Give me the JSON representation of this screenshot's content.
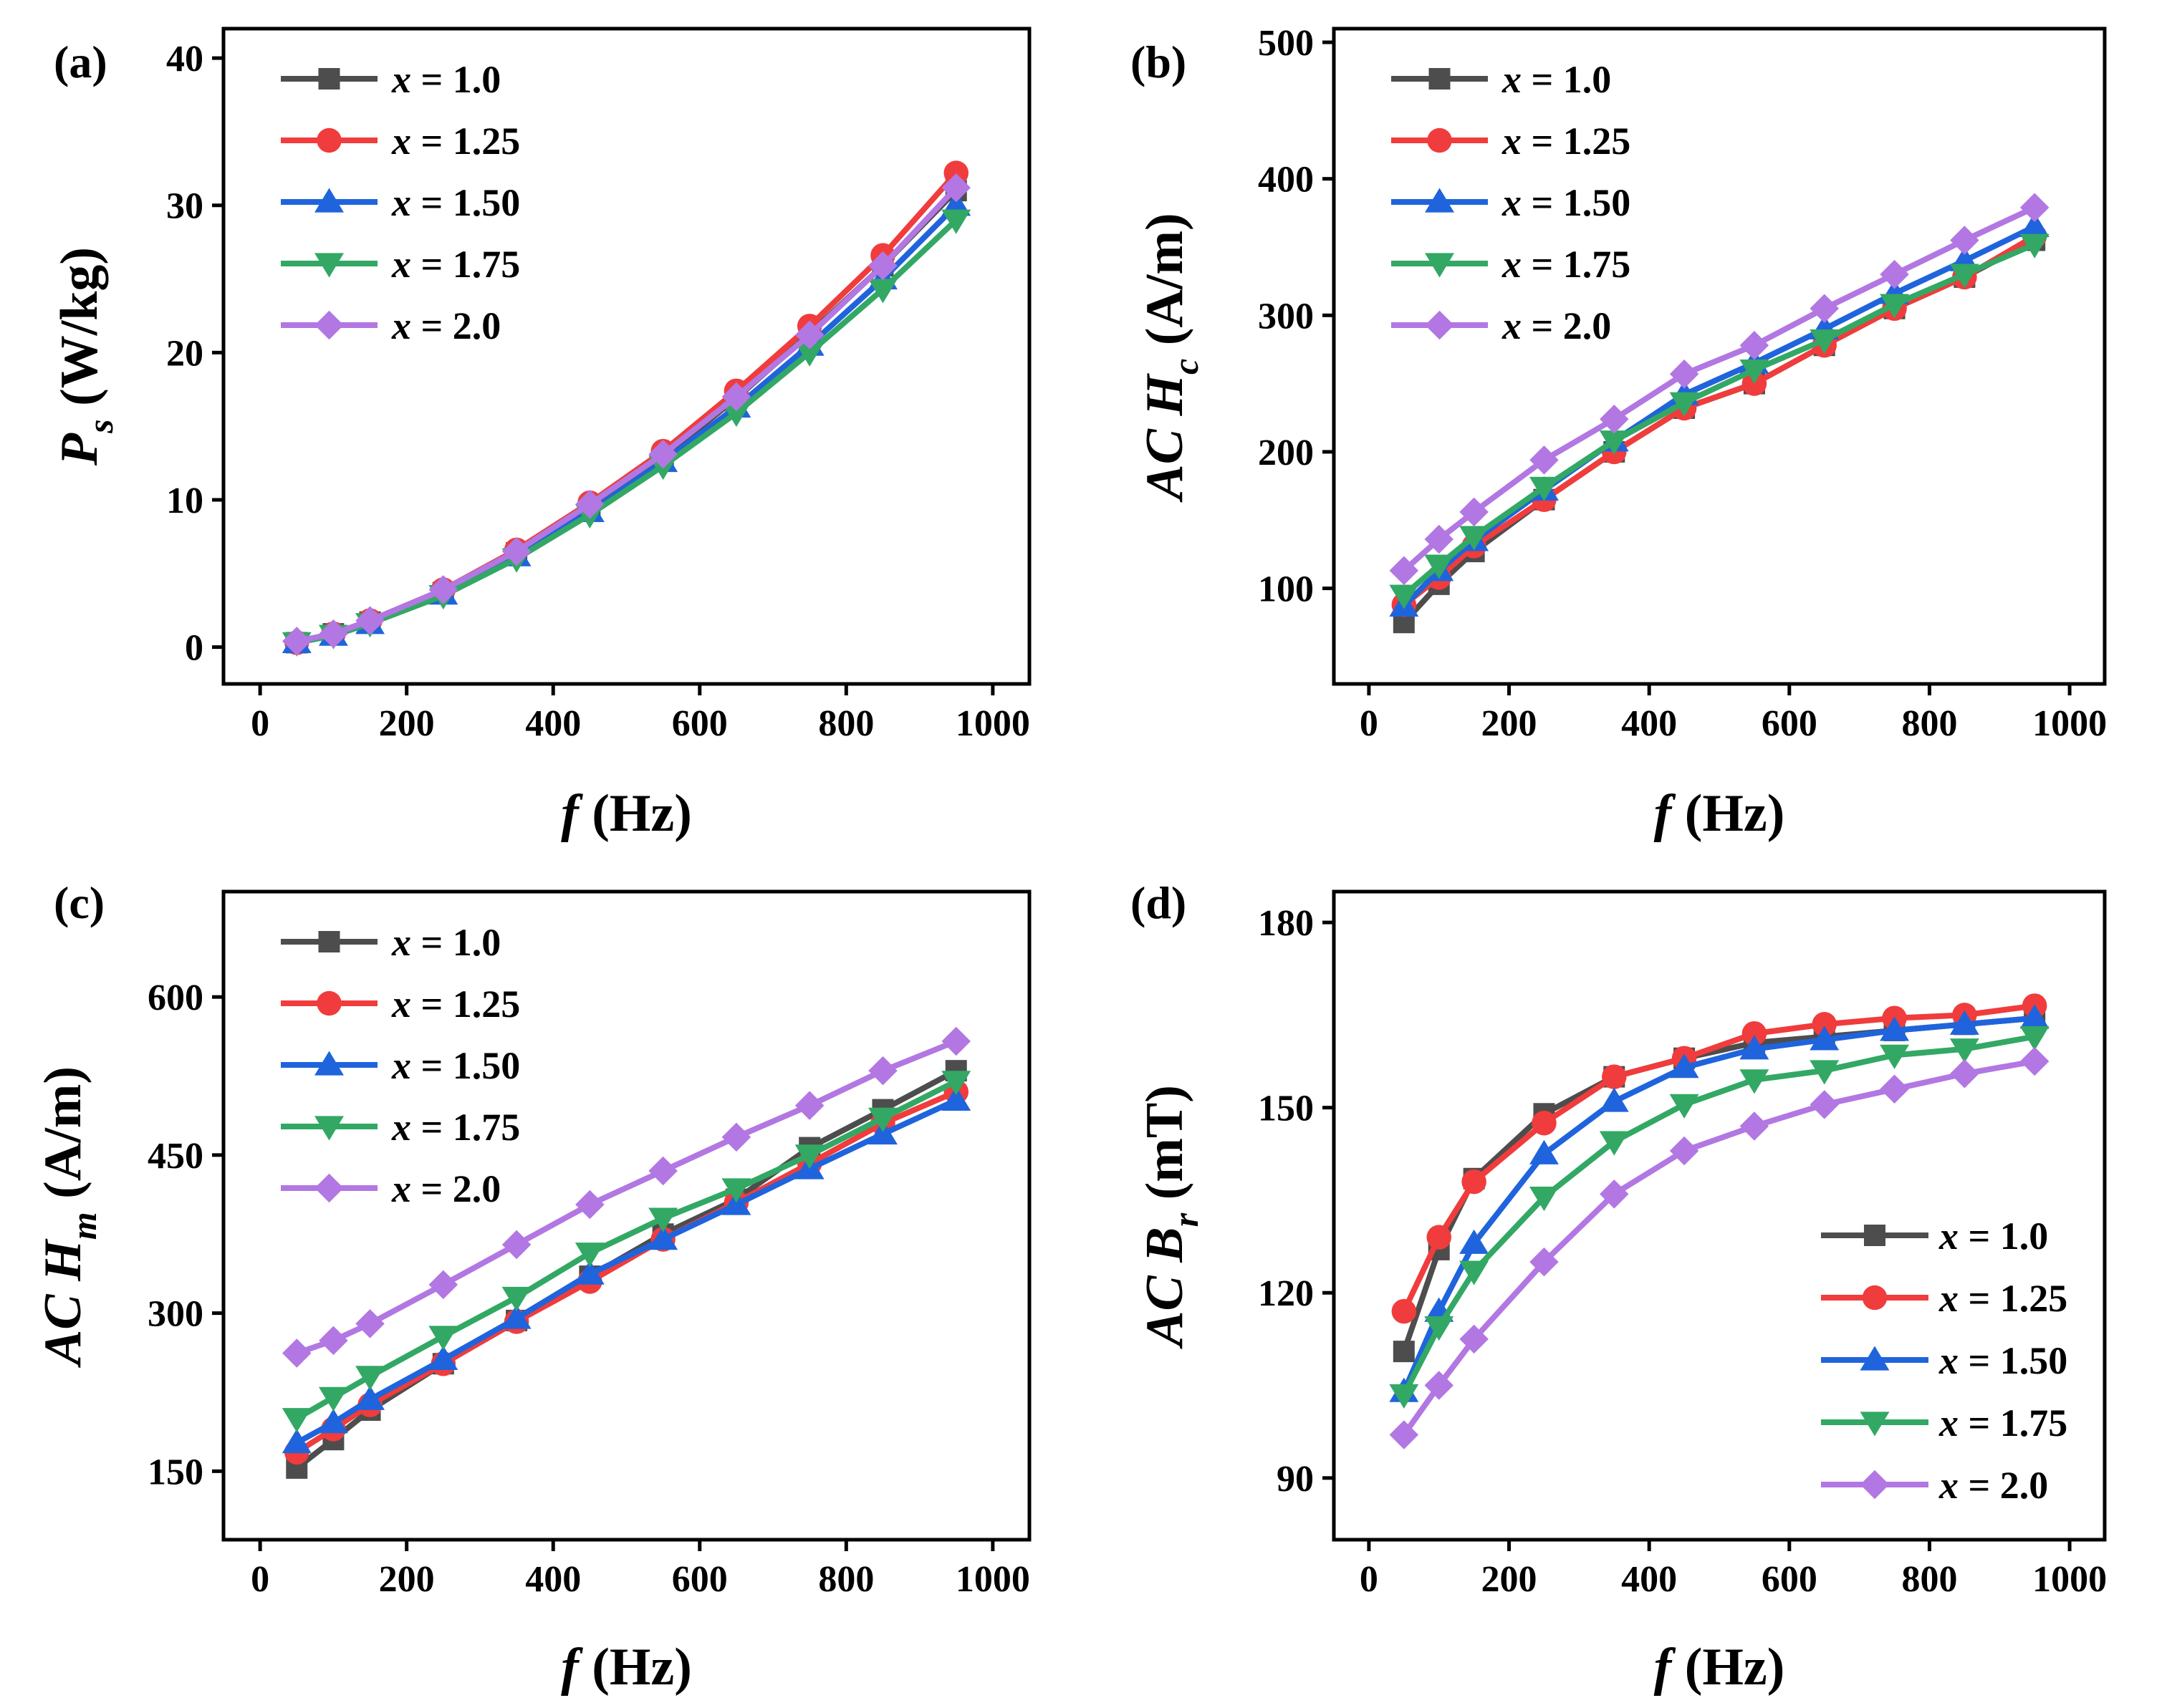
{
  "figure": {
    "colors": [
      "#4d4d4d",
      "#f03c3c",
      "#1f64dc",
      "#32a864",
      "#b277e2"
    ],
    "markers": [
      "square",
      "circle",
      "triangle-up",
      "triangle-down",
      "diamond"
    ]
  },
  "chart_data": [
    {
      "type": "line",
      "panel_label": "(a)",
      "title": "",
      "xlabel": {
        "symbol": "f",
        "unit": " (Hz)"
      },
      "ylabel": {
        "prefix": "",
        "symbol": "P",
        "subscript": "s",
        "unit": " (W/kg)"
      },
      "xlim": [
        -50,
        1050
      ],
      "ylim": [
        -2.5,
        42
      ],
      "xticks": [
        0,
        200,
        400,
        600,
        800,
        1000
      ],
      "yticks": [
        0,
        10,
        20,
        30,
        40
      ],
      "legend_position": "top-left",
      "x": [
        50,
        100,
        150,
        250,
        350,
        450,
        550,
        650,
        750,
        850,
        950
      ],
      "series": [
        {
          "name": "x = 1.0",
          "legend_var": "x",
          "legend_value": " = 1.0",
          "values": [
            0.3,
            0.9,
            1.7,
            3.7,
            6.4,
            9.5,
            12.9,
            16.9,
            21.3,
            25.9,
            31.0
          ]
        },
        {
          "name": "x = 1.25",
          "legend_var": "x",
          "legend_value": " = 1.25",
          "values": [
            0.3,
            0.9,
            1.8,
            3.9,
            6.6,
            9.8,
            13.3,
            17.4,
            21.8,
            26.6,
            32.2
          ]
        },
        {
          "name": "x = 1.50",
          "legend_var": "x",
          "legend_value": " = 1.50",
          "values": [
            0.3,
            0.8,
            1.6,
            3.6,
            6.2,
            9.2,
            12.6,
            16.3,
            20.5,
            25.0,
            30.0
          ]
        },
        {
          "name": "x = 1.75",
          "legend_var": "x",
          "legend_value": " = 1.75",
          "values": [
            0.3,
            0.8,
            1.6,
            3.5,
            6.0,
            9.0,
            12.3,
            15.9,
            20.0,
            24.3,
            29.0
          ]
        },
        {
          "name": "x = 2.0",
          "legend_var": "x",
          "legend_value": " = 2.0",
          "values": [
            0.4,
            0.9,
            1.8,
            3.9,
            6.5,
            9.7,
            13.1,
            17.0,
            21.2,
            25.9,
            31.2
          ]
        }
      ]
    },
    {
      "type": "line",
      "panel_label": "(b)",
      "title": "",
      "xlabel": {
        "symbol": "f",
        "unit": " (Hz)"
      },
      "ylabel": {
        "prefix": "AC ",
        "symbol": "H",
        "subscript": "c",
        "unit": " (A/m)"
      },
      "xlim": [
        -50,
        1050
      ],
      "ylim": [
        30,
        510
      ],
      "xticks": [
        0,
        200,
        400,
        600,
        800,
        1000
      ],
      "yticks": [
        100,
        200,
        300,
        400,
        500
      ],
      "legend_position": "top-left",
      "x": [
        50,
        100,
        150,
        250,
        350,
        450,
        550,
        650,
        750,
        850,
        950
      ],
      "series": [
        {
          "name": "x = 1.0",
          "legend_var": "x",
          "legend_value": " = 1.0",
          "values": [
            75,
            103,
            127,
            165,
            200,
            232,
            250,
            278,
            305,
            328,
            355
          ]
        },
        {
          "name": "x = 1.25",
          "legend_var": "x",
          "legend_value": " = 1.25",
          "values": [
            88,
            108,
            131,
            165,
            200,
            232,
            250,
            278,
            305,
            328,
            358
          ]
        },
        {
          "name": "x = 1.50",
          "legend_var": "x",
          "legend_value": " = 1.50",
          "values": [
            87,
            113,
            135,
            172,
            208,
            242,
            265,
            290,
            316,
            340,
            365
          ]
        },
        {
          "name": "x = 1.75",
          "legend_var": "x",
          "legend_value": " = 1.75",
          "values": [
            95,
            117,
            138,
            174,
            208,
            236,
            260,
            282,
            308,
            330,
            352
          ]
        },
        {
          "name": "x = 2.0",
          "legend_var": "x",
          "legend_value": " = 2.0",
          "values": [
            113,
            136,
            156,
            194,
            224,
            257,
            278,
            305,
            330,
            355,
            379
          ]
        }
      ]
    },
    {
      "type": "line",
      "panel_label": "(c)",
      "title": "",
      "xlabel": {
        "symbol": "f",
        "unit": " (Hz)"
      },
      "ylabel": {
        "prefix": "AC ",
        "symbol": "H",
        "subscript": "m",
        "unit": " (A/m)"
      },
      "xlim": [
        -50,
        1050
      ],
      "ylim": [
        85,
        700
      ],
      "xticks": [
        0,
        200,
        400,
        600,
        800,
        1000
      ],
      "yticks": [
        150,
        300,
        450,
        600
      ],
      "legend_position": "top-left",
      "x": [
        50,
        100,
        150,
        250,
        350,
        450,
        550,
        650,
        750,
        850,
        950
      ],
      "series": [
        {
          "name": "x = 1.0",
          "legend_var": "x",
          "legend_value": " = 1.0",
          "values": [
            153,
            180,
            208,
            252,
            293,
            335,
            375,
            408,
            457,
            493,
            530
          ]
        },
        {
          "name": "x = 1.25",
          "legend_var": "x",
          "legend_value": " = 1.25",
          "values": [
            168,
            190,
            213,
            252,
            292,
            330,
            370,
            405,
            442,
            480,
            510
          ]
        },
        {
          "name": "x = 1.50",
          "legend_var": "x",
          "legend_value": " = 1.50",
          "values": [
            177,
            196,
            218,
            256,
            295,
            337,
            370,
            403,
            437,
            470,
            502
          ]
        },
        {
          "name": "x = 1.75",
          "legend_var": "x",
          "legend_value": " = 1.75",
          "values": [
            200,
            220,
            240,
            278,
            315,
            357,
            390,
            418,
            450,
            485,
            520
          ]
        },
        {
          "name": "x = 2.0",
          "legend_var": "x",
          "legend_value": " = 2.0",
          "values": [
            262,
            274,
            290,
            327,
            365,
            403,
            435,
            467,
            497,
            530,
            558
          ]
        }
      ]
    },
    {
      "type": "line",
      "panel_label": "(d)",
      "title": "",
      "xlabel": {
        "symbol": "f",
        "unit": " (Hz)"
      },
      "ylabel": {
        "prefix": "AC ",
        "symbol": "B",
        "subscript": "r",
        "unit": " (mT)"
      },
      "xlim": [
        -50,
        1050
      ],
      "ylim": [
        80,
        185
      ],
      "xticks": [
        0,
        200,
        400,
        600,
        800,
        1000
      ],
      "yticks": [
        90,
        120,
        150,
        180
      ],
      "legend_position": "bottom-right",
      "x": [
        50,
        100,
        150,
        250,
        350,
        450,
        550,
        650,
        750,
        850,
        950
      ],
      "series": [
        {
          "name": "x = 1.0",
          "legend_var": "x",
          "legend_value": " = 1.0",
          "values": [
            110.5,
            127.0,
            138.5,
            149.0,
            155.0,
            158.0,
            160.5,
            161.5,
            162.5,
            163.5,
            164.5
          ]
        },
        {
          "name": "x = 1.25",
          "legend_var": "x",
          "legend_value": " = 1.25",
          "values": [
            117.0,
            129.0,
            138.0,
            147.5,
            155.0,
            158.0,
            162.0,
            163.5,
            164.5,
            165.0,
            166.5
          ]
        },
        {
          "name": "x = 1.50",
          "legend_var": "x",
          "legend_value": " = 1.50",
          "values": [
            104.0,
            117.0,
            128.0,
            142.5,
            151.0,
            156.5,
            159.5,
            161.0,
            162.5,
            163.5,
            164.5
          ]
        },
        {
          "name": "x = 1.75",
          "legend_var": "x",
          "legend_value": " = 1.75",
          "values": [
            103.5,
            114.5,
            123.5,
            135.5,
            144.5,
            150.5,
            154.5,
            156.0,
            158.5,
            159.5,
            161.5
          ]
        },
        {
          "name": "x = 2.0",
          "legend_var": "x",
          "legend_value": " = 2.0",
          "values": [
            97.0,
            105.0,
            112.5,
            125.0,
            136.0,
            143.0,
            147.0,
            150.5,
            153.0,
            155.5,
            157.5
          ]
        }
      ]
    }
  ]
}
